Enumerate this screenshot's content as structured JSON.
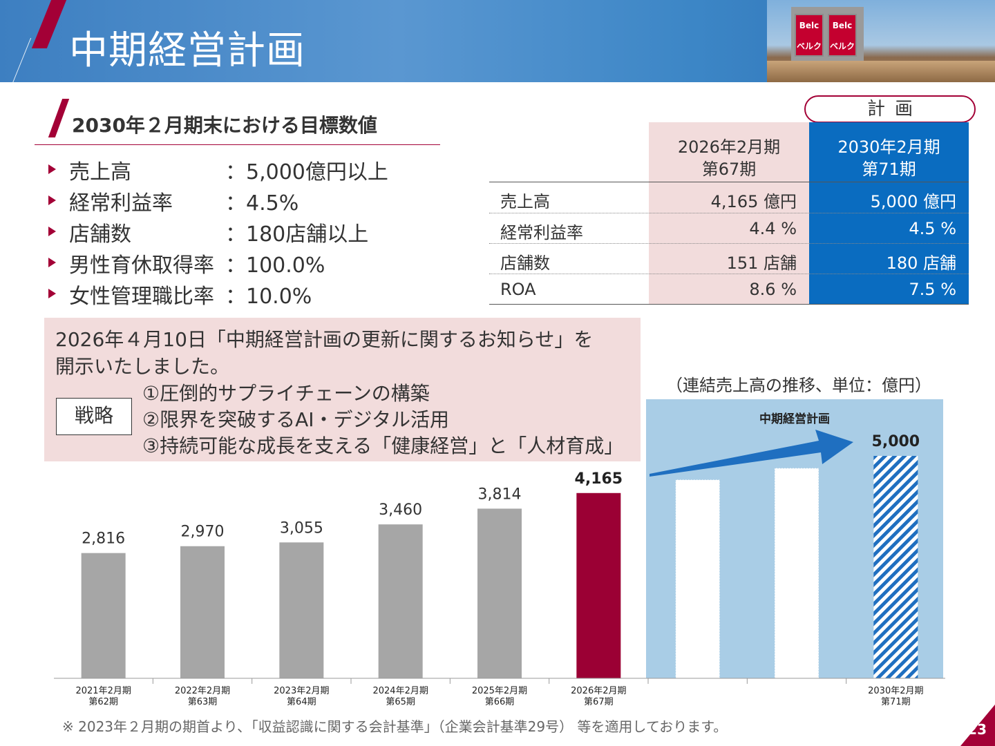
{
  "header": {
    "title": "中期経営計画",
    "photo_sign_top": "Belc",
    "photo_sign_bottom": "ベルク"
  },
  "section": {
    "title": "2030年２月期末における目標数値"
  },
  "targets": [
    {
      "label": "売上高",
      "value": "：5,000億円以上"
    },
    {
      "label": "経常利益率",
      "value": "：4.5%"
    },
    {
      "label": "店舗数",
      "value": "：180店舗以上"
    },
    {
      "label": "男性育休取得率",
      "value": "：100.0%"
    },
    {
      "label": "女性管理職比率",
      "value": "：10.0%"
    }
  ],
  "table": {
    "plan_badge": "計画",
    "col_a": {
      "line1": "2026年2月期",
      "line2": "第67期"
    },
    "col_b": {
      "line1": "2030年2月期",
      "line2": "第71期"
    },
    "rows": [
      {
        "label": "売上高",
        "a": "4,165 億円",
        "b": "5,000 億円"
      },
      {
        "label": "経常利益率",
        "a": "4.4 %",
        "b": "4.5 %"
      },
      {
        "label": "店舗数",
        "a": "151 店舗",
        "b": "180 店舗"
      },
      {
        "label": "ROA",
        "a": "8.6 %",
        "b": "7.5 %"
      }
    ]
  },
  "info": {
    "line1": "2026年４月10日「中期経営計画の更新に関するお知らせ」を",
    "line2": "開示いたしました。",
    "strategy_label": "戦略",
    "strategies": [
      "①圧倒的サプライチェーンの構築",
      "②限界を突破するAI・デジタル活用",
      "③持続可能な成長を支える「健康経営」と「人材育成」"
    ]
  },
  "chart_data": {
    "type": "bar",
    "unit_note": "（連結売上高の推移、単位：億円）",
    "plan_label": "中期経営計画",
    "categories": [
      [
        "2021年2月期",
        "第62期"
      ],
      [
        "2022年2月期",
        "第63期"
      ],
      [
        "2023年2月期",
        "第64期"
      ],
      [
        "2024年2月期",
        "第65期"
      ],
      [
        "2025年2月期",
        "第66期"
      ],
      [
        "2026年2月期",
        "第67期"
      ],
      [
        "",
        ""
      ],
      [
        "",
        ""
      ],
      [
        "2030年2月期",
        "第71期"
      ]
    ],
    "values": [
      2816,
      2970,
      3055,
      3460,
      3814,
      4165,
      null,
      null,
      5000
    ],
    "labels": [
      "2,816",
      "2,970",
      "3,055",
      "3,460",
      "3,814",
      "4,165",
      "",
      "",
      "5,000"
    ],
    "colors": [
      "#a6a6a6",
      "#a6a6a6",
      "#a6a6a6",
      "#a6a6a6",
      "#a6a6a6",
      "#9b0034",
      "#ffffff",
      "#ffffff",
      "#1f6fc0"
    ]
  },
  "footnote": "※ 2023年２月期の期首より､「収益認識に関する会計基準」（企業会計基準29号） 等を適用しております。",
  "page_number": "23"
}
